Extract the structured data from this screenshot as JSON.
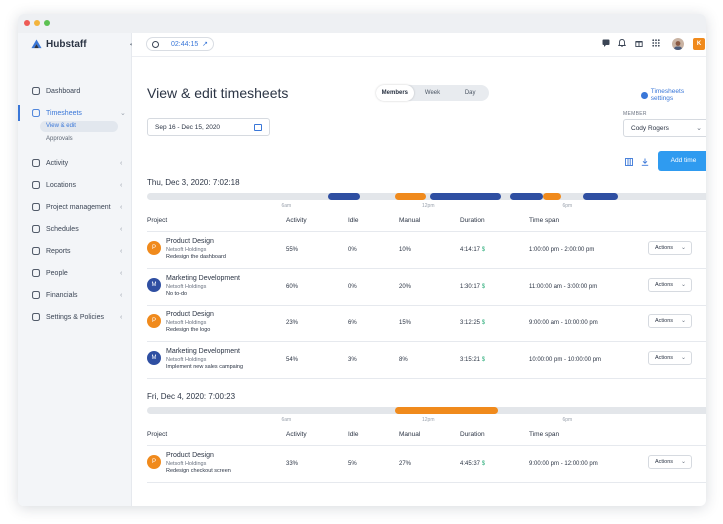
{
  "app": {
    "name": "Hubstaff"
  },
  "colors": {
    "accent": "#3a77d8",
    "orange": "#f08a1c",
    "navy": "#2f4fa2",
    "button": "#2f9bf0",
    "money": "#2fae7c"
  },
  "sidebar": {
    "items": [
      {
        "key": "dashboard",
        "label": "Dashboard",
        "icon": "dashboard-icon",
        "chevron": ""
      },
      {
        "key": "timesheets",
        "label": "Timesheets",
        "icon": "clock-icon",
        "chevron": "⌄",
        "active": true
      },
      {
        "key": "activity",
        "label": "Activity",
        "icon": "chart-line-icon",
        "chevron": "‹"
      },
      {
        "key": "locations",
        "label": "Locations",
        "icon": "map-icon",
        "chevron": "‹"
      },
      {
        "key": "project-management",
        "label": "Project management",
        "icon": "checkbox-icon",
        "chevron": "‹"
      },
      {
        "key": "schedules",
        "label": "Schedules",
        "icon": "calendar-icon",
        "chevron": "‹"
      },
      {
        "key": "reports",
        "label": "Reports",
        "icon": "document-icon",
        "chevron": "‹"
      },
      {
        "key": "people",
        "label": "People",
        "icon": "people-icon",
        "chevron": "‹"
      },
      {
        "key": "financials",
        "label": "Financials",
        "icon": "dollar-icon",
        "chevron": "‹"
      },
      {
        "key": "settings-policies",
        "label": "Settings & Policies",
        "icon": "sliders-icon",
        "chevron": "‹"
      }
    ],
    "sub_items": [
      {
        "label": "View & edit",
        "selected": true
      },
      {
        "label": "Approvals",
        "selected": false
      }
    ]
  },
  "topbar": {
    "timer": "02:44:15",
    "avatar_letter": "K"
  },
  "page": {
    "title": "View & edit timesheets",
    "tabs": [
      "Members",
      "Week",
      "Day"
    ],
    "settings_link": "Timesheets settings",
    "date_range": "Sep 16 - Dec 15, 2020",
    "member_label": "MEMBER",
    "member_value": "Cody Rogers",
    "add_time": "Add time"
  },
  "timeline_ticks": [
    "6am",
    "12pm",
    "6pm"
  ],
  "columns": [
    "Project",
    "Activity",
    "Idle",
    "Manual",
    "Duration",
    "Time span"
  ],
  "days": [
    {
      "label": "Thu, Dec 3, 2020:",
      "total": "7:02:18",
      "segments": [
        {
          "start": 7.75,
          "end": 9.1,
          "color": "#2f4fa2"
        },
        {
          "start": 10.6,
          "end": 11.9,
          "color": "#f08a1c"
        },
        {
          "start": 12.1,
          "end": 15.1,
          "color": "#2f4fa2"
        },
        {
          "start": 15.5,
          "end": 16.9,
          "color": "#2f4fa2"
        },
        {
          "start": 16.9,
          "end": 17.7,
          "color": "#f08a1c"
        },
        {
          "start": 18.6,
          "end": 20.1,
          "color": "#2f4fa2"
        }
      ],
      "rows": [
        {
          "initial": "P",
          "color": "#f08a1c",
          "project": "Product Design",
          "client": "Netsoft Holdings",
          "task": "Redesign the dashboard",
          "activity": "55%",
          "idle": "0%",
          "manual": "10%",
          "duration": "4:14:17",
          "timespan": "1:00:00 pm - 2:00:00 pm",
          "action": "Actions"
        },
        {
          "initial": "M",
          "color": "#2f4fa2",
          "project": "Marketing Development",
          "client": "Netsoft Holdings",
          "task": "No to-do",
          "activity": "60%",
          "idle": "0%",
          "manual": "20%",
          "duration": "1:30:17",
          "timespan": "11:00:00 am - 3:00:00 pm",
          "action": "Actions"
        },
        {
          "initial": "P",
          "color": "#f08a1c",
          "project": "Product Design",
          "client": "Netsoft Holdings",
          "task": "Redesign the logo",
          "activity": "23%",
          "idle": "6%",
          "manual": "15%",
          "duration": "3:12:25",
          "timespan": "9:00:00 am - 10:00:00 pm",
          "action": "Actions"
        },
        {
          "initial": "M",
          "color": "#2f4fa2",
          "project": "Marketing Development",
          "client": "Netsoft Holdings",
          "task": "Implement new sales campaing",
          "activity": "54%",
          "idle": "3%",
          "manual": "8%",
          "duration": "3:15:21",
          "timespan": "10:00:00 pm - 10:00:00 pm",
          "action": "Actions"
        }
      ]
    },
    {
      "label": "Fri, Dec 4, 2020:",
      "total": "7:00:23",
      "segments": [
        {
          "start": 10.6,
          "end": 15.0,
          "color": "#f08a1c"
        }
      ],
      "rows": [
        {
          "initial": "P",
          "color": "#f08a1c",
          "project": "Product Design",
          "client": "Netsoft Holdings",
          "task": "Redesign checkout screen",
          "activity": "33%",
          "idle": "5%",
          "manual": "27%",
          "duration": "4:45:37",
          "timespan": "9:00:00 pm - 12:00:00 pm",
          "action": "Actions"
        }
      ]
    }
  ]
}
